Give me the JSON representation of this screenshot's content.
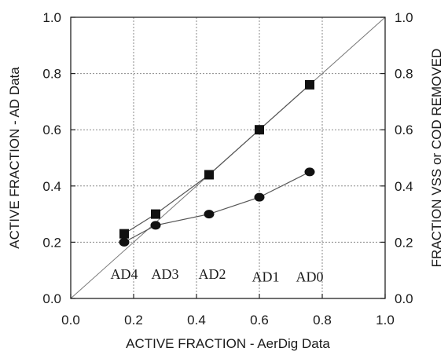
{
  "chart_data": {
    "type": "line",
    "xlabel": "ACTIVE FRACTION  - AerDig Data",
    "ylabel": "ACTIVE FRACTION - AD Data",
    "y2label": "FRACTION VSS or COD REMOVED",
    "xlim": [
      0,
      1
    ],
    "ylim": [
      0,
      1
    ],
    "y2lim": [
      0,
      1
    ],
    "x_ticks": [
      "0.0",
      "0.2",
      "0.4",
      "0.6",
      "0.8",
      "1.0"
    ],
    "y_ticks": [
      "0.0",
      "0.2",
      "0.4",
      "0.6",
      "0.8",
      "1.0"
    ],
    "y2_ticks": [
      "0.0",
      "0.2",
      "0.4",
      "0.6",
      "0.8",
      "1.0"
    ],
    "grid": true,
    "reference_line": {
      "type": "1:1",
      "from": [
        0,
        0
      ],
      "to": [
        1,
        1
      ]
    },
    "series": [
      {
        "marker": "square",
        "x": [
          0.17,
          0.27,
          0.44,
          0.6,
          0.76
        ],
        "y": [
          0.23,
          0.3,
          0.44,
          0.6,
          0.76
        ]
      },
      {
        "marker": "circle",
        "x": [
          0.17,
          0.27,
          0.44,
          0.6,
          0.76
        ],
        "y": [
          0.2,
          0.26,
          0.3,
          0.36,
          0.45
        ]
      }
    ],
    "annotations": [
      {
        "text": "AD4",
        "x": 0.17,
        "y": 0.07
      },
      {
        "text": "AD3",
        "x": 0.3,
        "y": 0.07
      },
      {
        "text": "AD2",
        "x": 0.45,
        "y": 0.07
      },
      {
        "text": "AD1",
        "x": 0.62,
        "y": 0.06
      },
      {
        "text": "AD0",
        "x": 0.76,
        "y": 0.06
      }
    ]
  }
}
